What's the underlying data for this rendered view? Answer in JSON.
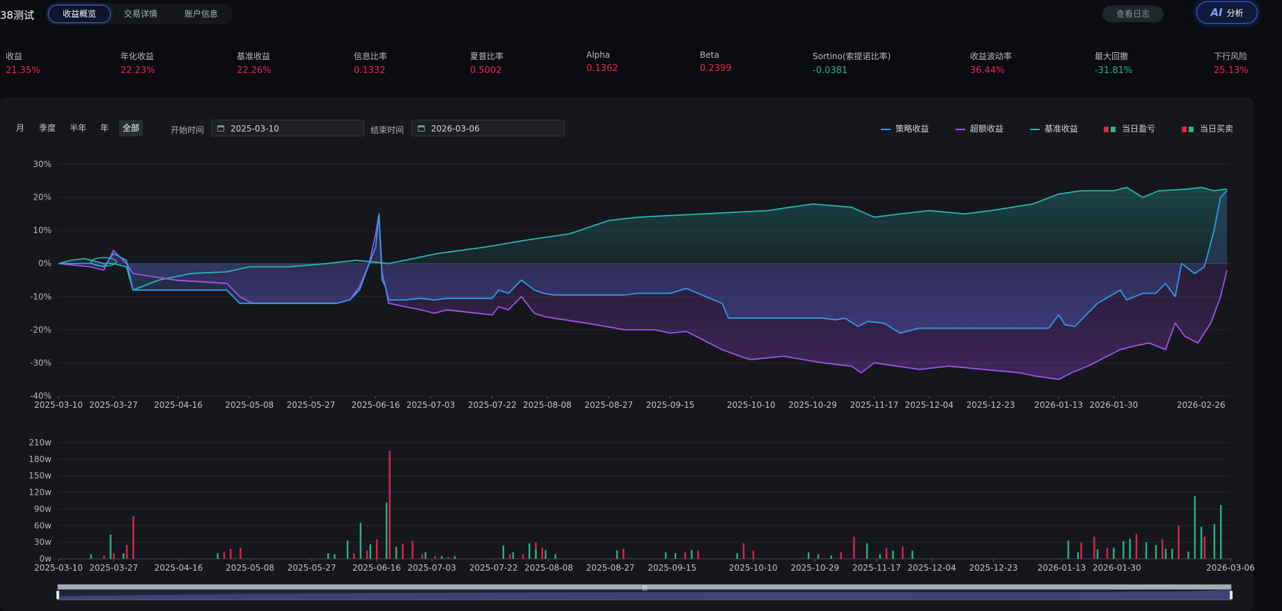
{
  "header": {
    "title": "38测试",
    "tabs": [
      {
        "label": "收益概览",
        "active": true
      },
      {
        "label": "交易详情",
        "active": false
      },
      {
        "label": "账户信息",
        "active": false
      }
    ],
    "log_button": "查看日志",
    "ai_button": {
      "glyph": "AI",
      "label": "分析"
    }
  },
  "metrics": [
    {
      "label": "收益",
      "value": "21.35%",
      "tone": "red"
    },
    {
      "label": "年化收益",
      "value": "22.23%",
      "tone": "red"
    },
    {
      "label": "基准收益",
      "value": "22.26%",
      "tone": "red"
    },
    {
      "label": "信息比率",
      "value": "0.1332",
      "tone": "red"
    },
    {
      "label": "夏普比率",
      "value": "0.5002",
      "tone": "red"
    },
    {
      "label": "Alpha",
      "value": "0.1362",
      "tone": "red"
    },
    {
      "label": "Beta",
      "value": "0.2399",
      "tone": "red"
    },
    {
      "label": "Sortino(索提诺比率)",
      "value": "-0.0381",
      "tone": "green"
    },
    {
      "label": "收益波动率",
      "value": "36.44%",
      "tone": "red"
    },
    {
      "label": "最大回撤",
      "value": "-31.81%",
      "tone": "green"
    },
    {
      "label": "下行风险",
      "value": "25.13%",
      "tone": "red"
    }
  ],
  "controls": {
    "periods": [
      {
        "label": "月"
      },
      {
        "label": "季度"
      },
      {
        "label": "半年"
      },
      {
        "label": "年"
      },
      {
        "label": "全部",
        "active": true
      }
    ],
    "start_label": "开始时间",
    "start_value": "2025-03-10",
    "end_label": "结束时间",
    "end_value": "2026-03-06"
  },
  "legend": {
    "strategy": "策略收益",
    "excess": "超额收益",
    "benchmark": "基准收益",
    "daily_pnl": "当日盈亏",
    "daily_trade": "当日买卖"
  },
  "colors": {
    "red": "#e8284d",
    "green": "#24b383",
    "strategy": "#2f9ee6",
    "excess": "#a155e4",
    "benchmark": "#28b5b1",
    "bar_red": "#e2244a",
    "bar_green": "#2ab487"
  },
  "chart_data": [
    {
      "type": "line",
      "x_ticks": [
        "2025-03-10",
        "2025-03-27",
        "2025-04-16",
        "2025-05-08",
        "2025-05-27",
        "2025-06-16",
        "2025-07-03",
        "2025-07-22",
        "2025-08-08",
        "2025-08-27",
        "2025-09-15",
        "2025-10-10",
        "2025-10-29",
        "2025-11-17",
        "2025-12-04",
        "2025-12-23",
        "2026-01-13",
        "2026-01-30",
        "2026-02-26"
      ],
      "y_ticks": [
        "30%",
        "20%",
        "10%",
        "0%",
        "-10%",
        "-20%",
        "-30%",
        "-40%"
      ],
      "ylim": [
        -40,
        30
      ],
      "grid": true,
      "legend": "top-right",
      "series": [
        {
          "name": "策略收益",
          "color": "#2f9ee6",
          "x": [
            "2025-03-10",
            "2025-03-20",
            "2025-03-24",
            "2025-03-27",
            "2025-03-31",
            "2025-04-02",
            "2025-04-15",
            "2025-05-01",
            "2025-05-05",
            "2025-05-09",
            "2025-06-04",
            "2025-06-08",
            "2025-06-11",
            "2025-06-14",
            "2025-06-16",
            "2025-06-17",
            "2025-06-18",
            "2025-06-19",
            "2025-06-20",
            "2025-06-25",
            "2025-06-30",
            "2025-07-04",
            "2025-07-08",
            "2025-07-22",
            "2025-07-24",
            "2025-07-27",
            "2025-07-31",
            "2025-08-04",
            "2025-08-07",
            "2025-08-10",
            "2025-09-01",
            "2025-09-05",
            "2025-09-15",
            "2025-09-20",
            "2025-09-26",
            "2025-10-01",
            "2025-10-03",
            "2025-10-15",
            "2025-11-01",
            "2025-11-05",
            "2025-11-08",
            "2025-11-12",
            "2025-11-15",
            "2025-11-20",
            "2025-11-25",
            "2025-12-01",
            "2026-01-01",
            "2026-01-10",
            "2026-01-13",
            "2026-01-15",
            "2026-01-18",
            "2026-01-21",
            "2026-01-25",
            "2026-02-01",
            "2026-02-03",
            "2026-02-08",
            "2026-02-12",
            "2026-02-15",
            "2026-02-18",
            "2026-02-20",
            "2026-02-24",
            "2026-02-27",
            "2026-03-02",
            "2026-03-04",
            "2026-03-06"
          ],
          "values": [
            0,
            0,
            -1,
            3,
            1,
            -8,
            -8,
            -8,
            -12,
            -12,
            -12,
            -11,
            -8,
            0,
            5,
            15,
            -5,
            -7,
            -11,
            -11,
            -10.5,
            -11,
            -10.5,
            -10.5,
            -8,
            -9,
            -5,
            -8,
            -9,
            -9.5,
            -9.5,
            -9,
            -9,
            -7.5,
            -10,
            -12,
            -16.5,
            -16.5,
            -16.5,
            -17,
            -16.5,
            -19,
            -17.5,
            -18,
            -21,
            -19.5,
            -19.5,
            -19.5,
            -15.5,
            -18.5,
            -19,
            -16,
            -12,
            -8,
            -11,
            -9,
            -9,
            -6,
            -10,
            0,
            -3,
            -1,
            10,
            20,
            22
          ]
        },
        {
          "name": "超额收益",
          "color": "#a155e4",
          "x": [
            "2025-03-10",
            "2025-03-20",
            "2025-03-24",
            "2025-03-27",
            "2025-03-31",
            "2025-04-02",
            "2025-04-15",
            "2025-05-01",
            "2025-05-05",
            "2025-05-09",
            "2025-06-04",
            "2025-06-08",
            "2025-06-11",
            "2025-06-14",
            "2025-06-16",
            "2025-06-17",
            "2025-06-18",
            "2025-06-19",
            "2025-06-20",
            "2025-06-25",
            "2025-06-30",
            "2025-07-04",
            "2025-07-08",
            "2025-07-22",
            "2025-07-24",
            "2025-07-27",
            "2025-07-31",
            "2025-08-04",
            "2025-08-07",
            "2025-08-10",
            "2025-08-20",
            "2025-09-01",
            "2025-09-10",
            "2025-09-15",
            "2025-09-20",
            "2025-10-01",
            "2025-10-08",
            "2025-10-10",
            "2025-10-20",
            "2025-11-01",
            "2025-11-10",
            "2025-11-13",
            "2025-11-17",
            "2025-12-01",
            "2025-12-10",
            "2026-01-01",
            "2026-01-06",
            "2026-01-13",
            "2026-01-17",
            "2026-01-22",
            "2026-01-28",
            "2026-02-01",
            "2026-02-05",
            "2026-02-10",
            "2026-02-15",
            "2026-02-18",
            "2026-02-21",
            "2026-02-25",
            "2026-03-01",
            "2026-03-04",
            "2026-03-06"
          ],
          "values": [
            0,
            -1,
            -2,
            4,
            0,
            -3,
            -5,
            -6,
            -10,
            -12,
            -12,
            -11,
            -7,
            0,
            9,
            15,
            -3,
            -7,
            -12,
            -13,
            -14,
            -15,
            -14,
            -15.5,
            -13,
            -14,
            -10,
            -15,
            -16,
            -16.5,
            -18,
            -20,
            -20,
            -21,
            -20.5,
            -26,
            -28.5,
            -29,
            -28,
            -30,
            -31,
            -33,
            -30,
            -32,
            -31,
            -33,
            -34,
            -35,
            -33,
            -31,
            -28,
            -26,
            -25,
            -24,
            -26,
            -18,
            -22,
            -24,
            -18,
            -10,
            -2
          ]
        },
        {
          "name": "基准收益",
          "color": "#28b5b1",
          "x": [
            "2025-03-10",
            "2025-03-14",
            "2025-03-18",
            "2025-03-24",
            "2025-03-27",
            "2025-03-31",
            "2025-04-02",
            "2025-04-10",
            "2025-04-20",
            "2025-05-01",
            "2025-05-08",
            "2025-05-20",
            "2025-06-01",
            "2025-06-10",
            "2025-06-20",
            "2025-06-30",
            "2025-07-05",
            "2025-07-20",
            "2025-08-01",
            "2025-08-15",
            "2025-08-27",
            "2025-09-05",
            "2025-09-15",
            "2025-09-25",
            "2025-10-05",
            "2025-10-15",
            "2025-10-29",
            "2025-11-10",
            "2025-11-17",
            "2025-11-25",
            "2025-12-04",
            "2025-12-15",
            "2025-12-23",
            "2026-01-05",
            "2026-01-13",
            "2026-01-20",
            "2026-01-30",
            "2026-02-03",
            "2026-02-08",
            "2026-02-13",
            "2026-02-22",
            "2026-02-26",
            "2026-03-02",
            "2026-03-06"
          ],
          "values": [
            0,
            1,
            1.5,
            0,
            0,
            -1,
            -8,
            -5,
            -3,
            -2.5,
            -1,
            -1,
            0,
            1,
            0,
            2,
            3,
            5,
            7,
            9,
            13,
            14,
            14.5,
            15,
            15.5,
            16,
            18,
            17,
            14,
            15,
            16,
            15,
            16,
            18,
            21,
            22,
            22,
            23,
            20,
            22,
            22.5,
            23,
            22,
            22.5
          ]
        }
      ]
    },
    {
      "type": "bar",
      "x_ticks": [
        "2025-03-10",
        "2025-03-27",
        "2025-04-16",
        "2025-05-08",
        "2025-05-27",
        "2025-06-16",
        "2025-07-03",
        "2025-07-22",
        "2025-08-08",
        "2025-08-27",
        "2025-09-15",
        "2025-10-10",
        "2025-10-29",
        "2025-11-17",
        "2025-12-04",
        "2025-12-23",
        "2026-01-13",
        "2026-01-30",
        "2026-03-06"
      ],
      "y_ticks": [
        "210w",
        "180w",
        "150w",
        "120w",
        "90w",
        "60w",
        "30w",
        "0w"
      ],
      "ylim": [
        0,
        210
      ],
      "unit": "w",
      "series": [
        {
          "color": "red",
          "x": [
            "2025-03-24",
            "2025-03-27",
            "2025-03-31",
            "2025-04-02",
            "2025-04-30",
            "2025-05-02",
            "2025-05-05",
            "2025-06-09",
            "2025-06-13",
            "2025-06-16",
            "2025-06-20",
            "2025-06-24",
            "2025-06-27",
            "2025-06-30",
            "2025-07-04",
            "2025-07-08",
            "2025-07-27",
            "2025-07-31",
            "2025-08-04",
            "2025-08-06",
            "2025-08-31",
            "2025-09-19",
            "2025-09-23",
            "2025-10-07",
            "2025-10-10",
            "2025-11-06",
            "2025-11-10",
            "2025-11-20",
            "2025-11-25",
            "2026-01-19",
            "2026-01-23",
            "2026-01-27",
            "2026-02-05",
            "2026-02-13",
            "2026-02-18",
            "2026-02-26"
          ],
          "values": [
            6,
            10,
            25,
            77,
            12,
            18,
            20,
            10,
            15,
            35,
            195,
            27,
            32,
            8,
            5,
            3,
            8,
            8,
            30,
            20,
            18,
            12,
            15,
            28,
            15,
            12,
            40,
            20,
            22,
            30,
            40,
            20,
            45,
            35,
            60,
            40
          ]
        },
        {
          "color": "green",
          "x": [
            "2025-03-20",
            "2025-03-26",
            "2025-03-30",
            "2025-04-28",
            "2025-06-01",
            "2025-06-03",
            "2025-06-07",
            "2025-06-11",
            "2025-06-14",
            "2025-06-19",
            "2025-06-22",
            "2025-07-01",
            "2025-07-06",
            "2025-07-10",
            "2025-07-25",
            "2025-07-28",
            "2025-08-02",
            "2025-08-04",
            "2025-08-07",
            "2025-08-10",
            "2025-08-29",
            "2025-09-13",
            "2025-09-16",
            "2025-09-21",
            "2025-10-05",
            "2025-10-27",
            "2025-10-30",
            "2025-11-03",
            "2025-11-14",
            "2025-11-18",
            "2025-11-22",
            "2025-11-28",
            "2026-01-15",
            "2026-01-18",
            "2026-01-24",
            "2026-01-29",
            "2026-02-01",
            "2026-02-03",
            "2026-02-08",
            "2026-02-11",
            "2026-02-14",
            "2026-02-16",
            "2026-02-21",
            "2026-02-23",
            "2026-02-25",
            "2026-03-01",
            "2026-03-03"
          ],
          "values": [
            8,
            44,
            10,
            10,
            10,
            8,
            33,
            65,
            26,
            102,
            22,
            12,
            5,
            5,
            24,
            12,
            28,
            17,
            16,
            8,
            15,
            12,
            10,
            16,
            10,
            12,
            8,
            6,
            28,
            8,
            15,
            15,
            33,
            12,
            17,
            20,
            32,
            36,
            30,
            25,
            18,
            18,
            13,
            113,
            58,
            63,
            97
          ]
        }
      ]
    }
  ]
}
